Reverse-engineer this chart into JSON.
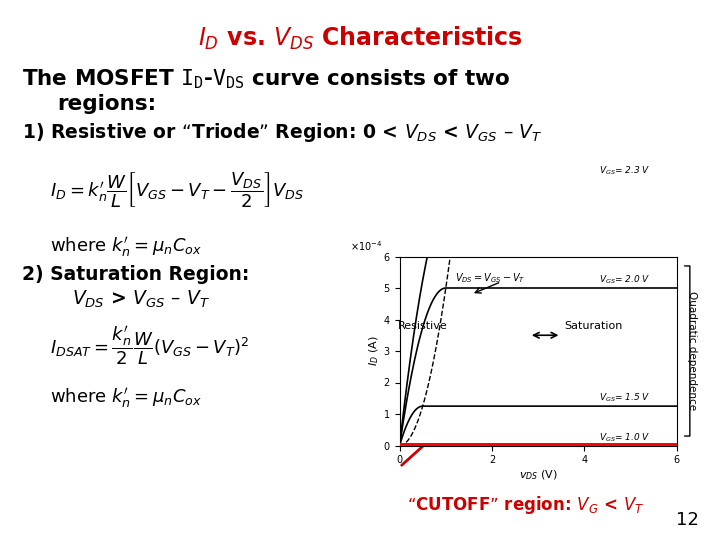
{
  "title_text": "$I_D$ vs. $V_{DS}$ Characteristics",
  "title_color": "#cc0000",
  "bg_color": "#ffffff",
  "slide_number": "12",
  "body_lines": [
    "The MOSFET $\\mathtt{I_D}$-$\\mathtt{V_{DS}}$ curve consists of two",
    "    regions:"
  ],
  "region1_text": "1) Resistive or “Triode” Region: 0 < $V_{DS}$ < $V_{GS}$ – $V_T$",
  "formula1": "$I_D = k_n^\\prime \\\\dfrac{W}{L}\\\\left[V_{GS} - V_T - \\\\dfrac{V_{DS}}{2}\\\\right]V_{DS}$",
  "where1": "where $k_n^\\prime = \\\\mu_n C_{ox}$",
  "region2_text": "2) Saturation Region:",
  "region2b_text": "    $V_{DS}$ > $V_{GS}$ – $V_T$",
  "formula2": "$I_{DSAT} = \\\\dfrac{k_n^\\prime}{2} \\\\dfrac{W}{L}\\\\left(V_{GS} - V_T\\\\right)^2$",
  "where2": "where $k_n^\\prime = \\\\mu_n C_{ox}$",
  "cutoff_text": "“CUTOFF” region: $V_G$ < $V_T$",
  "vgs_values": [
    1.0,
    1.5,
    2.0,
    2.3
  ],
  "VT": 1.0,
  "kn": 0.001,
  "vds_max": 6.0,
  "id_max": 0.0006,
  "graph_labels": [
    "$V_{GS}$= 2.3 V",
    "$V_{GS}$= 2.0 V",
    "$V_{GS}$= 1.5 V",
    "$V_{GS}$= 1.0 V"
  ],
  "resistive_label": "Resistive",
  "saturation_label": "Saturation",
  "quadratic_label": "Quadratic dependence",
  "boundary_label": "$V_{DS} = V_{GS}-V_T$",
  "xlabel": "$v_{DS}$ (V)",
  "ylabel": "$I_D$ (A)"
}
